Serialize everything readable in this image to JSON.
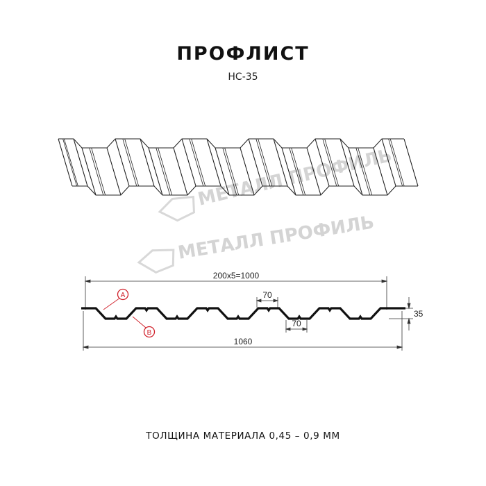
{
  "header": {
    "title": "ПРОФЛИСТ",
    "model": "НС-35"
  },
  "watermark": {
    "text": "МЕТАЛЛ ПРОФИЛЬ",
    "color": "#d4d4d4"
  },
  "profile_drawing": {
    "pitch_label": "200x5=1000",
    "total_width_label": "1060",
    "top_shelf_label": "70",
    "bottom_shelf_label": "70",
    "height_label": "35",
    "marker_a": "A",
    "marker_b": "B",
    "marker_color": "#d0202a",
    "line_color": "#111111"
  },
  "footer": {
    "thickness": "ТОЛЩИНА МАТЕРИАЛА 0,45 – 0,9 ММ"
  }
}
